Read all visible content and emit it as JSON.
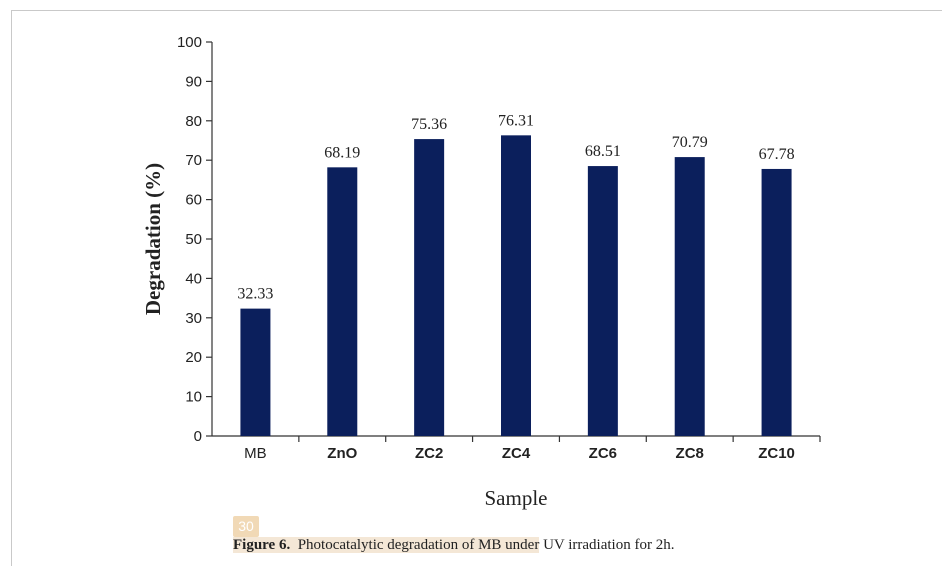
{
  "page_badge": "30",
  "caption": {
    "label": "Figure 6.",
    "highlighted_text": "Photocatalytic degradation of MB under",
    "rest_text": "UV irradiation for 2h."
  },
  "colors": {
    "bar": "#0b1f5c",
    "axis": "#333333"
  },
  "chart_data": {
    "type": "bar",
    "categories": [
      "MB",
      "ZnO",
      "ZC2",
      "ZC4",
      "ZC6",
      "ZC8",
      "ZC10"
    ],
    "values": [
      32.33,
      68.19,
      75.36,
      76.31,
      68.51,
      70.79,
      67.78
    ],
    "value_labels": [
      "32.33",
      "68.19",
      "75.36",
      "76.31",
      "68.51",
      "70.79",
      "67.78"
    ],
    "xlabel": "Sample",
    "ylabel": "Degradation (%)",
    "ylim": [
      0,
      100
    ],
    "yticks": [
      "0",
      "10",
      "20",
      "30",
      "40",
      "50",
      "60",
      "70",
      "80",
      "90",
      "100"
    ],
    "grid": false,
    "legend": "none"
  }
}
